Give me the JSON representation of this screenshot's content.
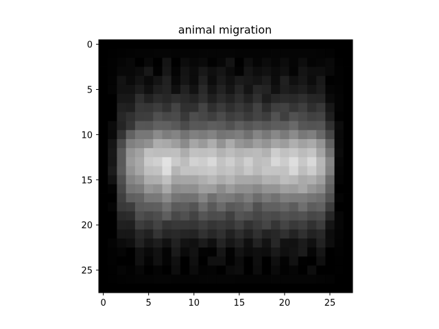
{
  "chart_data": {
    "type": "heatmap",
    "title": "animal migration",
    "xlabel": "",
    "ylabel": "",
    "colormap": "gray",
    "grid": false,
    "legend": "none",
    "shape": [
      28,
      28
    ],
    "x_range": [
      -0.5,
      27.5
    ],
    "y_range": [
      27.5,
      -0.5
    ],
    "x_ticks": [
      0,
      5,
      10,
      15,
      20,
      25
    ],
    "x_tick_labels": [
      "0",
      "5",
      "10",
      "15",
      "20",
      "25"
    ],
    "y_ticks": [
      0,
      5,
      10,
      15,
      20,
      25
    ],
    "y_tick_labels": [
      "0",
      "5",
      "10",
      "15",
      "20",
      "25"
    ],
    "row_profile": [
      0.0,
      0.02,
      0.06,
      0.09,
      0.12,
      0.15,
      0.2,
      0.28,
      0.33,
      0.42,
      0.58,
      0.72,
      0.85,
      0.92,
      0.88,
      0.78,
      0.68,
      0.55,
      0.45,
      0.36,
      0.28,
      0.2,
      0.14,
      0.09,
      0.06,
      0.04,
      0.02,
      0.0
    ],
    "col_profile": [
      0.0,
      0.1,
      0.45,
      0.68,
      0.8,
      0.86,
      0.92,
      0.96,
      0.88,
      0.84,
      0.88,
      0.92,
      0.92,
      0.9,
      0.9,
      0.88,
      0.86,
      0.86,
      0.88,
      0.92,
      0.94,
      0.95,
      0.93,
      0.9,
      0.84,
      0.55,
      0.08,
      0.0
    ],
    "value_range": [
      0,
      1
    ]
  }
}
